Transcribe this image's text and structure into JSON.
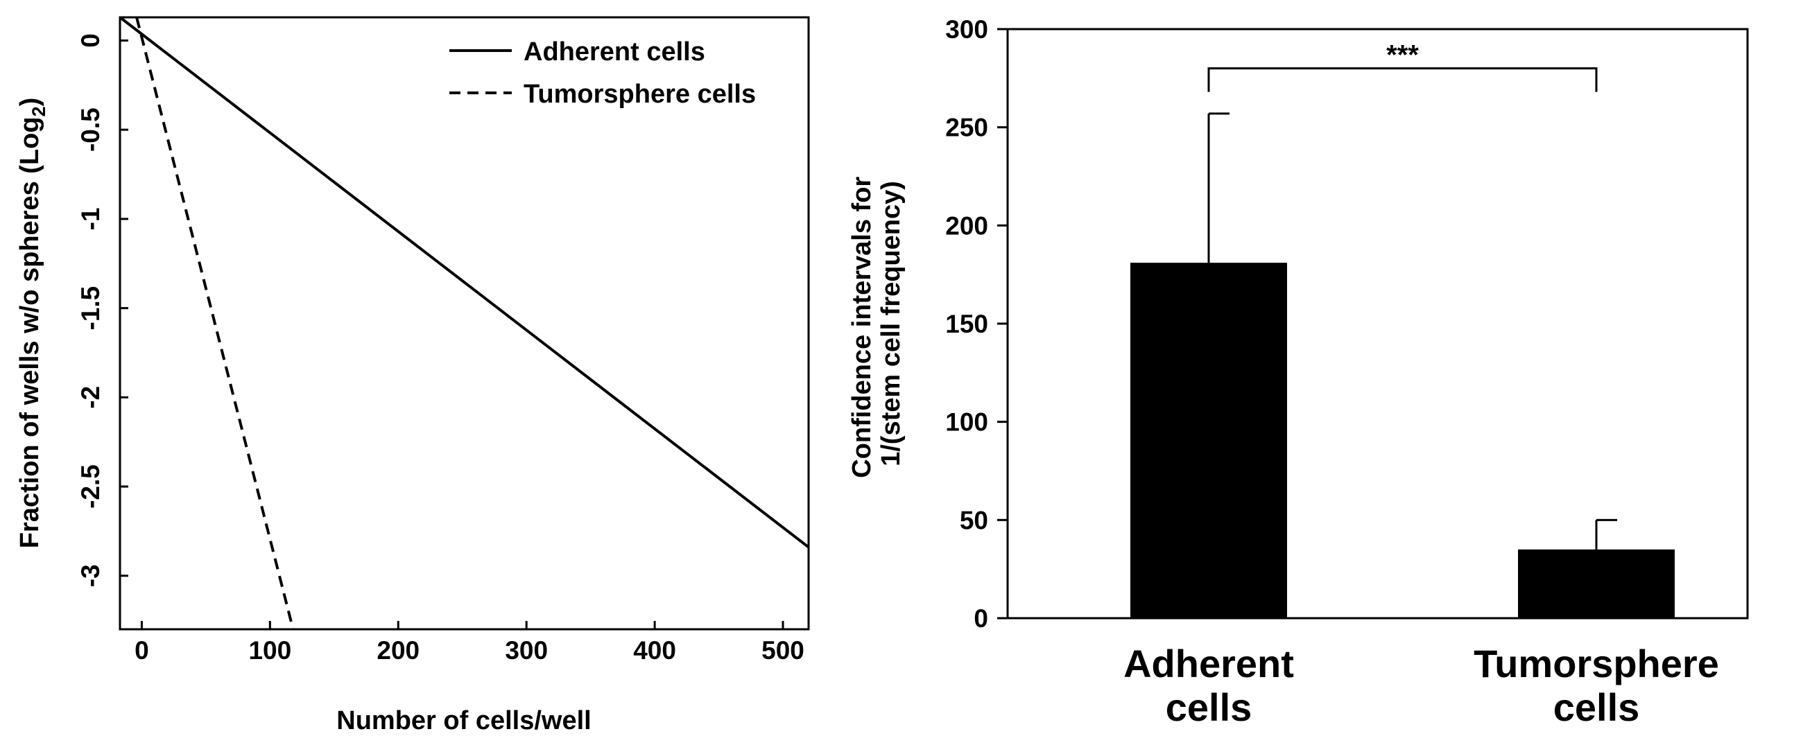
{
  "chart_data": [
    {
      "type": "line",
      "title": "",
      "xlabel": "Number of cells/well",
      "ylabel": "Fraction of wells w/o spheres (Log",
      "ylabel_sub": "2",
      "ylabel_close": ")",
      "xlim": [
        -17,
        520
      ],
      "ylim": [
        -3.3,
        0.13
      ],
      "xticks": [
        0,
        100,
        200,
        300,
        400,
        500
      ],
      "yticks": [
        0,
        -0.5,
        -1,
        -1.5,
        -2,
        -2.5,
        -3
      ],
      "xtick_labels": [
        "0",
        "100",
        "200",
        "300",
        "400",
        "500"
      ],
      "ytick_labels": [
        "0",
        "-0.5",
        "-1",
        "-1.5",
        "-2",
        "-2.5",
        "-3"
      ],
      "legend_position": "top-right",
      "series": [
        {
          "name": "Adherent cells",
          "style": "solid",
          "x": [
            -17,
            520
          ],
          "y": [
            0.13,
            -2.84
          ]
        },
        {
          "name": "Tumorsphere cells",
          "style": "dashed",
          "x": [
            -4,
            118
          ],
          "y": [
            0.13,
            -3.3
          ]
        }
      ]
    },
    {
      "type": "bar",
      "title": "",
      "xlabel": "",
      "ylabel_line1": "Confidence intervals for",
      "ylabel_line2": "1/(stem cell frequency)",
      "ylim": [
        0,
        300
      ],
      "yticks": [
        0,
        50,
        100,
        150,
        200,
        250,
        300
      ],
      "ytick_labels": [
        "0",
        "50",
        "100",
        "150",
        "200",
        "250",
        "300"
      ],
      "categories": [
        {
          "line1": "Adherent",
          "line2": "cells"
        },
        {
          "line1": "Tumorsphere",
          "line2": "cells"
        }
      ],
      "values": [
        181,
        35
      ],
      "error_upper": [
        257,
        50
      ],
      "significance": {
        "label": "***",
        "bracket_y": 280,
        "left_y": 268,
        "right_y": 268
      }
    }
  ]
}
